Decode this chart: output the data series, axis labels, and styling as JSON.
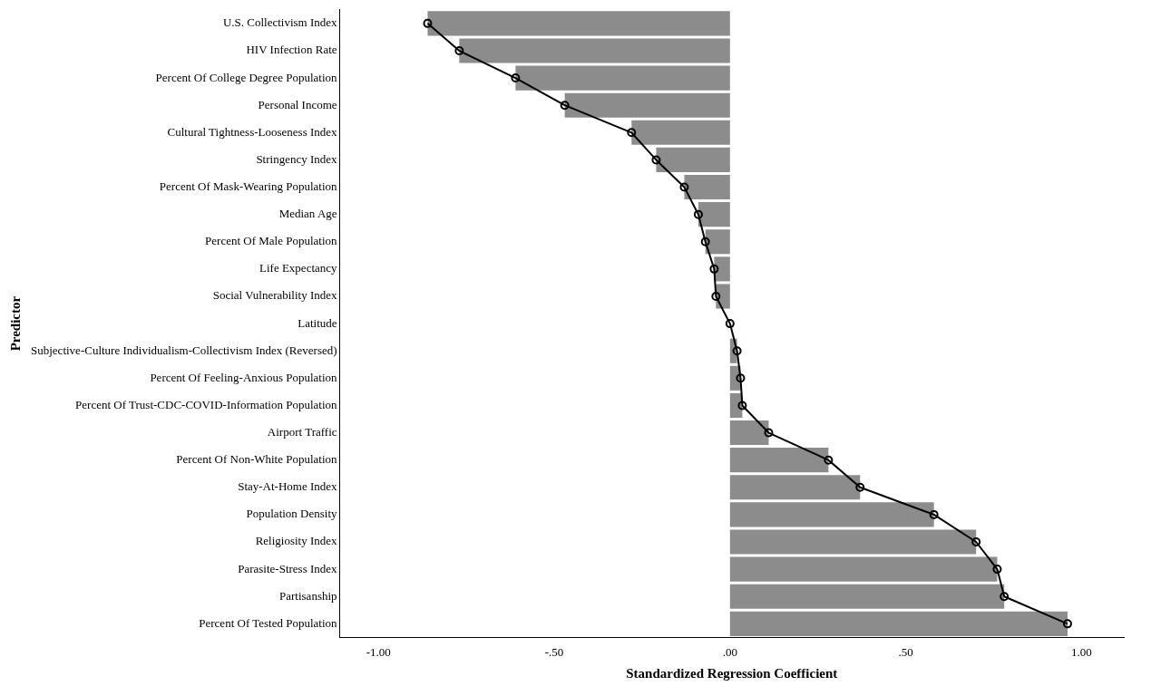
{
  "chart_data": {
    "type": "bar",
    "orientation": "horizontal",
    "categories": [
      "U.S. Collectivism Index",
      "HIV Infection Rate",
      "Percent Of College Degree Population",
      "Personal Income",
      "Cultural Tightness-Looseness Index",
      "Stringency Index",
      "Percent Of Mask-Wearing Population",
      "Median Age",
      "Percent Of Male Population",
      "Life Expectancy",
      "Social Vulnerability Index",
      "Latitude",
      "Subjective-Culture Individualism-Collectivism Index (Reversed)",
      "Percent Of Feeling-Anxious Population",
      "Percent Of Trust-CDC-COVID-Information Population",
      "Airport Traffic",
      "Percent Of Non-White Population",
      "Stay-At-Home Index",
      "Population Density",
      "Religiosity Index",
      "Parasite-Stress Index",
      "Partisanship",
      "Percent Of Tested Population"
    ],
    "series": [
      {
        "color": "#8c8c8c",
        "values": [
          -0.86,
          -0.77,
          -0.61,
          -0.47,
          -0.28,
          -0.21,
          -0.13,
          -0.09,
          -0.07,
          -0.045,
          -0.04,
          0.0,
          0.02,
          0.03,
          0.035,
          0.11,
          0.28,
          0.37,
          0.58,
          0.7,
          0.76,
          0.78,
          0.96
        ]
      },
      {
        "type": "line",
        "color": "#000000",
        "marker": "circle",
        "values": [
          -0.86,
          -0.77,
          -0.61,
          -0.47,
          -0.28,
          -0.21,
          -0.13,
          -0.09,
          -0.07,
          -0.045,
          -0.04,
          0.0,
          0.02,
          0.03,
          0.035,
          0.11,
          0.28,
          0.37,
          0.58,
          0.7,
          0.76,
          0.78,
          0.96
        ]
      }
    ],
    "xlim": [
      -1.11,
      1.12
    ],
    "xticks": [
      {
        "value": -1,
        "label": "-1.00"
      },
      {
        "value": -0.5,
        "label": "-.50"
      },
      {
        "value": 0,
        "label": ".00"
      },
      {
        "value": 0.5,
        "label": ".50"
      },
      {
        "value": 1,
        "label": "1.00"
      }
    ],
    "xlabel": "Standardized Regression Coefficient",
    "ylabel": "Predictor",
    "grid": false,
    "legend": false
  }
}
